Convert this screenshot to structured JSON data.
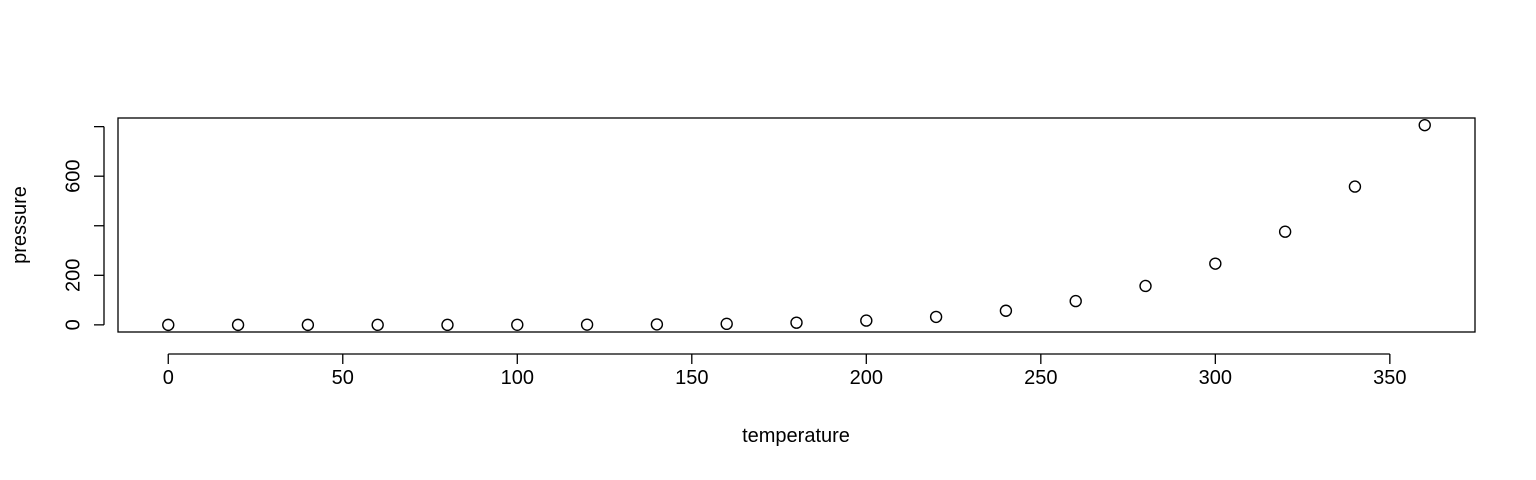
{
  "chart_data": {
    "type": "scatter",
    "title": "",
    "xlabel": "temperature",
    "ylabel": "pressure",
    "xlim": [
      -14.4,
      374.4
    ],
    "ylim": [
      -28.8,
      834.9
    ],
    "x_ticks": [
      0,
      50,
      100,
      150,
      200,
      250,
      300,
      350
    ],
    "y_ticks": [
      0,
      200,
      400,
      600,
      800
    ],
    "y_tick_labels_shown": [
      "0",
      "200",
      "600"
    ],
    "grid": false,
    "legend": "none",
    "marker": "open-circle",
    "x": [
      0,
      20,
      40,
      60,
      80,
      100,
      120,
      140,
      160,
      180,
      200,
      220,
      240,
      260,
      280,
      300,
      320,
      340,
      360
    ],
    "y": [
      0.0002,
      0.0012,
      0.006,
      0.03,
      0.09,
      0.27,
      0.75,
      1.85,
      4.2,
      8.8,
      17.3,
      32.1,
      57,
      96,
      157,
      247,
      376,
      558,
      806
    ]
  }
}
